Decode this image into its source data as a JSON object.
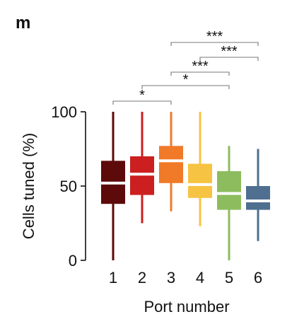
{
  "panel_label": "m",
  "chart_data": {
    "type": "box",
    "xlabel": "Port number",
    "ylabel": "Cells tuned (%)",
    "ylim": [
      0,
      100
    ],
    "yticks": [
      0,
      50,
      100
    ],
    "categories": [
      "1",
      "2",
      "3",
      "4",
      "5",
      "6"
    ],
    "colors": [
      "#5c0a0a",
      "#cc1f1f",
      "#f07a28",
      "#f7c342",
      "#8dbc5e",
      "#4e6f8f"
    ],
    "boxes": [
      {
        "category": "1",
        "min": 0,
        "q1": 38,
        "median": 52,
        "q3": 67,
        "max": 100
      },
      {
        "category": "2",
        "min": 25,
        "q1": 44,
        "median": 58,
        "q3": 70,
        "max": 100
      },
      {
        "category": "3",
        "min": 33,
        "q1": 52,
        "median": 67,
        "q3": 77,
        "max": 100
      },
      {
        "category": "4",
        "min": 23,
        "q1": 42,
        "median": 51,
        "q3": 65,
        "max": 100
      },
      {
        "category": "5",
        "min": 0,
        "q1": 34,
        "median": 45,
        "q3": 60,
        "max": 77
      },
      {
        "category": "6",
        "min": 13,
        "q1": 34,
        "median": 40,
        "q3": 50,
        "max": 75
      }
    ],
    "significance": [
      {
        "from": "3",
        "to": "6",
        "label": "***"
      },
      {
        "from": "4",
        "to": "6",
        "label": "***"
      },
      {
        "from": "3",
        "to": "5",
        "label": "***"
      },
      {
        "from": "2",
        "to": "5",
        "label": "*"
      },
      {
        "from": "1",
        "to": "3",
        "label": "*"
      }
    ]
  }
}
